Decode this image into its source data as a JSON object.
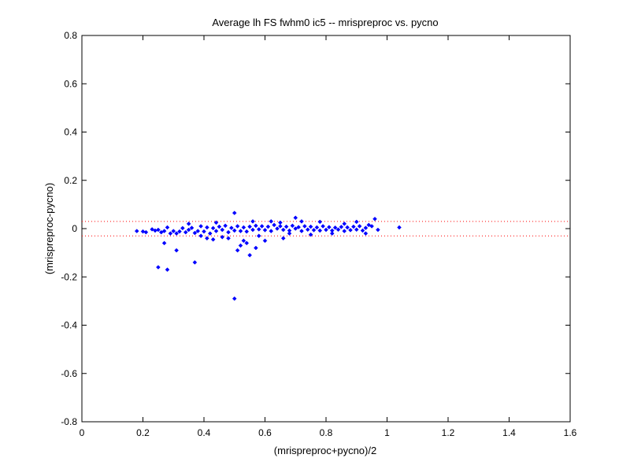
{
  "chart_data": {
    "type": "scatter",
    "title": "Average lh FS fwhm0 ic5 -- mrispreproc vs. pycno",
    "xlabel": "(mrispreproc+pycno)/2",
    "ylabel": "(mrispreproc-pycno)",
    "xlim": [
      0,
      1.6
    ],
    "ylim": [
      -0.8,
      0.8
    ],
    "xticks": [
      0,
      0.2,
      0.4,
      0.6,
      0.8,
      1,
      1.2,
      1.4,
      1.6
    ],
    "xtick_labels": [
      "0",
      "0.2",
      "0.4",
      "0.6",
      "0.8",
      "1",
      "1.2",
      "1.4",
      "1.6"
    ],
    "yticks": [
      -0.8,
      -0.6,
      -0.4,
      -0.2,
      0,
      0.2,
      0.4,
      0.6,
      0.8
    ],
    "ytick_labels": [
      "-0.8",
      "-0.6",
      "-0.4",
      "-0.2",
      "0",
      "0.2",
      "0.4",
      "0.6",
      "0.8"
    ],
    "grid": false,
    "marker_color": "#0000ff",
    "reference_line_color": "#ff0000",
    "reference_lines_y": [
      0.03,
      -0.03
    ],
    "points": [
      [
        0.18,
        -0.01
      ],
      [
        0.2,
        -0.012
      ],
      [
        0.21,
        -0.015
      ],
      [
        0.23,
        -0.003
      ],
      [
        0.24,
        -0.008
      ],
      [
        0.25,
        -0.005
      ],
      [
        0.26,
        -0.015
      ],
      [
        0.27,
        -0.01
      ],
      [
        0.28,
        0.005
      ],
      [
        0.29,
        -0.02
      ],
      [
        0.3,
        -0.01
      ],
      [
        0.31,
        -0.02
      ],
      [
        0.32,
        -0.012
      ],
      [
        0.33,
        0.002
      ],
      [
        0.34,
        -0.015
      ],
      [
        0.35,
        -0.005
      ],
      [
        0.36,
        0.003
      ],
      [
        0.37,
        -0.018
      ],
      [
        0.38,
        -0.01
      ],
      [
        0.39,
        0.01
      ],
      [
        0.4,
        -0.012
      ],
      [
        0.41,
        0.005
      ],
      [
        0.42,
        -0.02
      ],
      [
        0.43,
        0.002
      ],
      [
        0.44,
        -0.01
      ],
      [
        0.45,
        0.008
      ],
      [
        0.46,
        -0.005
      ],
      [
        0.47,
        0.012
      ],
      [
        0.48,
        -0.015
      ],
      [
        0.49,
        0.003
      ],
      [
        0.5,
        -0.008
      ],
      [
        0.51,
        0.01
      ],
      [
        0.52,
        -0.01
      ],
      [
        0.53,
        0.005
      ],
      [
        0.54,
        -0.012
      ],
      [
        0.55,
        0.008
      ],
      [
        0.56,
        -0.005
      ],
      [
        0.57,
        0.012
      ],
      [
        0.58,
        -0.003
      ],
      [
        0.59,
        0.01
      ],
      [
        0.6,
        -0.006
      ],
      [
        0.61,
        0.008
      ],
      [
        0.62,
        -0.01
      ],
      [
        0.63,
        0.015
      ],
      [
        0.64,
        0.0
      ],
      [
        0.65,
        0.01
      ],
      [
        0.66,
        -0.005
      ],
      [
        0.67,
        0.008
      ],
      [
        0.68,
        -0.008
      ],
      [
        0.69,
        0.012
      ],
      [
        0.7,
        0.0
      ],
      [
        0.71,
        0.006
      ],
      [
        0.72,
        -0.01
      ],
      [
        0.73,
        0.01
      ],
      [
        0.74,
        -0.004
      ],
      [
        0.75,
        0.008
      ],
      [
        0.76,
        -0.006
      ],
      [
        0.77,
        0.005
      ],
      [
        0.78,
        -0.008
      ],
      [
        0.79,
        0.01
      ],
      [
        0.8,
        -0.005
      ],
      [
        0.81,
        0.006
      ],
      [
        0.82,
        -0.008
      ],
      [
        0.83,
        0.004
      ],
      [
        0.84,
        -0.004
      ],
      [
        0.85,
        0.007
      ],
      [
        0.86,
        -0.01
      ],
      [
        0.87,
        0.005
      ],
      [
        0.88,
        -0.006
      ],
      [
        0.89,
        0.008
      ],
      [
        0.9,
        -0.004
      ],
      [
        0.91,
        0.01
      ],
      [
        0.92,
        -0.008
      ],
      [
        0.93,
        0.003
      ],
      [
        0.94,
        0.015
      ],
      [
        0.95,
        0.01
      ],
      [
        0.96,
        0.04
      ],
      [
        0.97,
        -0.005
      ],
      [
        1.04,
        0.005
      ],
      [
        0.25,
        -0.16
      ],
      [
        0.27,
        -0.06
      ],
      [
        0.28,
        -0.17
      ],
      [
        0.31,
        -0.09
      ],
      [
        0.37,
        -0.14
      ],
      [
        0.41,
        -0.04
      ],
      [
        0.43,
        -0.045
      ],
      [
        0.5,
        -0.29
      ],
      [
        0.5,
        0.065
      ],
      [
        0.51,
        -0.09
      ],
      [
        0.52,
        -0.07
      ],
      [
        0.53,
        -0.05
      ],
      [
        0.54,
        -0.06
      ],
      [
        0.55,
        -0.11
      ],
      [
        0.57,
        -0.08
      ],
      [
        0.58,
        -0.03
      ],
      [
        0.6,
        -0.05
      ],
      [
        0.62,
        0.03
      ],
      [
        0.66,
        -0.04
      ],
      [
        0.7,
        0.045
      ],
      [
        0.46,
        -0.035
      ],
      [
        0.44,
        0.025
      ],
      [
        0.35,
        0.02
      ],
      [
        0.39,
        -0.03
      ],
      [
        0.48,
        -0.04
      ],
      [
        0.56,
        0.03
      ],
      [
        0.65,
        0.025
      ],
      [
        0.72,
        0.03
      ],
      [
        0.78,
        0.028
      ],
      [
        0.86,
        0.02
      ],
      [
        0.9,
        0.028
      ],
      [
        0.93,
        -0.02
      ],
      [
        0.82,
        -0.02
      ],
      [
        0.75,
        -0.025
      ],
      [
        0.68,
        -0.02
      ]
    ]
  }
}
